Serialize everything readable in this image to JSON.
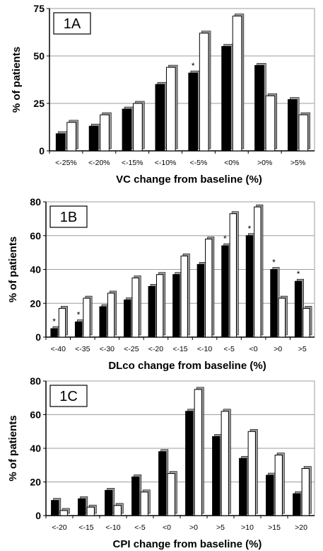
{
  "chart_data": [
    {
      "type": "bar",
      "panel_label": "1A",
      "categories": [
        "<-25%",
        "<-20%",
        "<-15%",
        "<-10%",
        "<-5%",
        "<0%",
        ">0%",
        ">5%"
      ],
      "series": [
        {
          "values": [
            9,
            13,
            22,
            35,
            41,
            55,
            45,
            27
          ]
        },
        {
          "values": [
            15,
            19,
            25,
            44,
            62,
            71,
            29,
            19
          ]
        }
      ],
      "annotations": [
        {
          "category_index": 4,
          "series_index": 0,
          "text": "*"
        }
      ],
      "xlabel": "VC change from baseline (%)",
      "ylabel": "% of patients",
      "ylim": [
        0,
        75
      ],
      "yticks": [
        0,
        25,
        50,
        75
      ],
      "grid": true
    },
    {
      "type": "bar",
      "panel_label": "1B",
      "categories": [
        "<-40",
        "<-35",
        "<-30",
        "<-25",
        "<-20",
        "<-15",
        "<-10",
        "<-5",
        "<0",
        ">0",
        ">5"
      ],
      "series": [
        {
          "values": [
            5,
            9,
            18,
            22,
            30,
            37,
            43,
            54,
            60,
            40,
            33
          ]
        },
        {
          "values": [
            17,
            23,
            26,
            35,
            37,
            48,
            58,
            73,
            77,
            23,
            17
          ]
        }
      ],
      "annotations": [
        {
          "category_index": 0,
          "series_index": 0,
          "text": "*"
        },
        {
          "category_index": 1,
          "series_index": 0,
          "text": "*"
        },
        {
          "category_index": 7,
          "series_index": 0,
          "text": "*"
        },
        {
          "category_index": 8,
          "series_index": 0,
          "text": "*"
        },
        {
          "category_index": 9,
          "series_index": 0,
          "text": "*"
        },
        {
          "category_index": 10,
          "series_index": 0,
          "text": "*"
        }
      ],
      "xlabel": "DLco change from baseline (%)",
      "ylabel": "% of patients",
      "ylim": [
        0,
        80
      ],
      "yticks": [
        0,
        20,
        40,
        60,
        80
      ],
      "grid": true
    },
    {
      "type": "bar",
      "panel_label": "1C",
      "categories": [
        "<-20",
        "<-15",
        "<-10",
        "<-5",
        "<0",
        ">0",
        ">5",
        ">10",
        ">15",
        ">20"
      ],
      "series": [
        {
          "values": [
            9,
            10,
            15,
            23,
            38,
            62,
            47,
            34,
            24,
            13
          ]
        },
        {
          "values": [
            3,
            5,
            6,
            14,
            25,
            75,
            62,
            50,
            36,
            28
          ]
        }
      ],
      "annotations": [],
      "xlabel": "CPI change from baseline (%)",
      "ylabel": "% of patients",
      "ylim": [
        0,
        80
      ],
      "yticks": [
        0,
        20,
        40,
        60,
        80
      ],
      "grid": true
    }
  ],
  "colors": {
    "series_0": "#000000",
    "series_1": "#ffffff",
    "bar_shadow": "#9a9a9a",
    "grid": "#9e9e9e",
    "axis": "#000000"
  }
}
